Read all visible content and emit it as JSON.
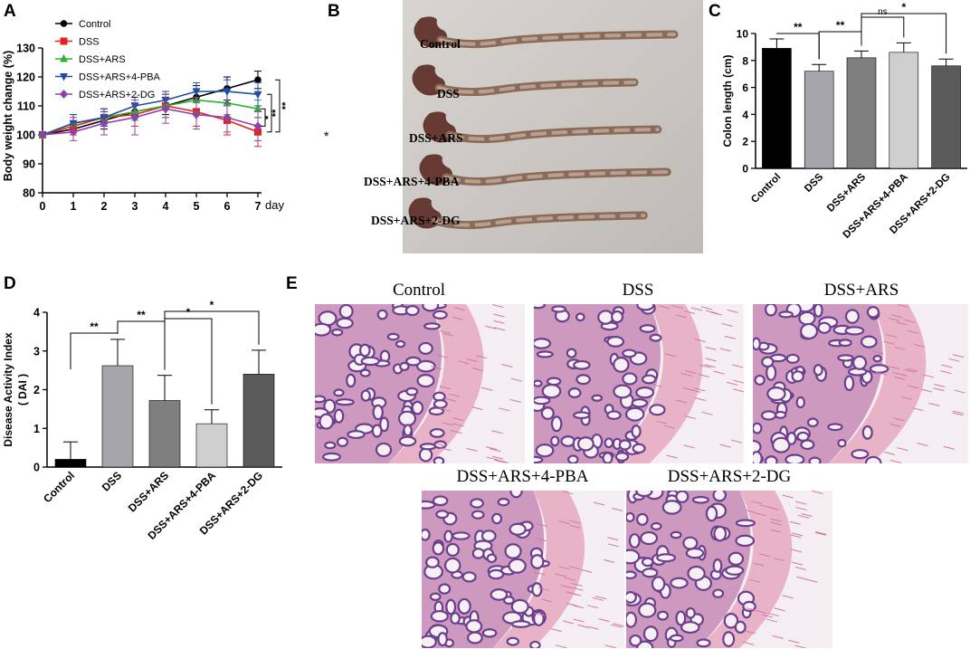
{
  "panels": {
    "A": "A",
    "B": "B",
    "C": "C",
    "D": "D",
    "E": "E"
  },
  "colors": {
    "control": "#000000",
    "dss": "#e8201b",
    "ars": "#2db034",
    "pba": "#1f4ea1",
    "dg": "#8e43a8",
    "bar_control": "#000000",
    "bar_dss": "#a4a4aa",
    "bar_ars": "#7f7f7f",
    "bar_pba": "#cfcfcf",
    "bar_dg": "#5a5a5a"
  },
  "stray_mark": "*",
  "chart_data": [
    {
      "id": "A",
      "type": "line",
      "ylabel": "Body weight change (%)",
      "xlabel": "day",
      "x": [
        0,
        1,
        2,
        3,
        4,
        5,
        6,
        7
      ],
      "xticks": [
        "0",
        "1",
        "2",
        "3",
        "4",
        "5",
        "6",
        "7"
      ],
      "ylim": [
        80,
        130
      ],
      "yticks": [
        "80",
        "90",
        "100",
        "110",
        "120",
        "130"
      ],
      "legend_position": "top-left",
      "series": [
        {
          "name": "Control",
          "color": "#000000",
          "marker": "circle",
          "values": [
            100,
            102,
            105,
            108,
            110,
            113,
            116,
            119
          ],
          "errors": [
            0,
            2,
            3,
            3,
            3,
            4,
            4,
            3
          ]
        },
        {
          "name": "DSS",
          "color": "#e8201b",
          "marker": "square",
          "values": [
            100,
            103,
            106,
            107,
            110,
            108,
            105,
            101
          ],
          "errors": [
            0,
            3,
            3,
            4,
            4,
            5,
            5,
            5
          ]
        },
        {
          "name": "DSS+ARS",
          "color": "#2db034",
          "marker": "triangle-up",
          "values": [
            100,
            104,
            106,
            108,
            110,
            112,
            111,
            109
          ],
          "errors": [
            0,
            3,
            3,
            3,
            4,
            4,
            4,
            3
          ]
        },
        {
          "name": "DSS+ARS+4-PBA",
          "color": "#1f4ea1",
          "marker": "triangle-down",
          "values": [
            100,
            104,
            106,
            110,
            112,
            115,
            115,
            114
          ],
          "errors": [
            0,
            3,
            3,
            3,
            3,
            3,
            4,
            4
          ]
        },
        {
          "name": "DSS+ARS+2-DG",
          "color": "#8e43a8",
          "marker": "diamond",
          "values": [
            100,
            101,
            104,
            106,
            109,
            107,
            106,
            103
          ],
          "errors": [
            0,
            3,
            4,
            6,
            5,
            5,
            5,
            5
          ]
        }
      ],
      "annotations": [
        "*",
        "*",
        "**",
        "**"
      ]
    },
    {
      "id": "C",
      "type": "bar",
      "ylabel": "Colon length (cm)",
      "categories": [
        "Control",
        "DSS",
        "DSS+ARS",
        "DSS+ARS+4-PBA",
        "DSS+ARS+2-DG"
      ],
      "values": [
        8.9,
        7.2,
        8.2,
        8.6,
        7.6
      ],
      "errors": [
        0.7,
        0.5,
        0.5,
        0.7,
        0.5
      ],
      "ylim": [
        0,
        10
      ],
      "yticks": [
        "0",
        "2",
        "4",
        "6",
        "8",
        "10"
      ],
      "colors": [
        "#000000",
        "#a4a4aa",
        "#7f7f7f",
        "#cfcfcf",
        "#5a5a5a"
      ],
      "significance": [
        {
          "from": 0,
          "to": 1,
          "label": "**"
        },
        {
          "from": 1,
          "to": 2,
          "label": "**"
        },
        {
          "from": 2,
          "to": 3,
          "label": "ns"
        },
        {
          "from": 2,
          "to": 4,
          "label": "*"
        }
      ]
    },
    {
      "id": "D",
      "type": "bar",
      "ylabel": "Disease Activity Index\n( DAI )",
      "categories": [
        "Control",
        "DSS",
        "DSS+ARS",
        "DSS+ARS+4-PBA",
        "DSS+ARS+2-DG"
      ],
      "values": [
        0.2,
        2.62,
        1.72,
        1.12,
        2.4
      ],
      "errors": [
        0.45,
        0.68,
        0.65,
        0.36,
        0.62
      ],
      "ylim": [
        0,
        4
      ],
      "yticks": [
        "0",
        "1",
        "2",
        "3",
        "4"
      ],
      "colors": [
        "#000000",
        "#a4a4aa",
        "#7f7f7f",
        "#cfcfcf",
        "#5a5a5a"
      ],
      "significance": [
        {
          "from": 0,
          "to": 1,
          "label": "**"
        },
        {
          "from": 1,
          "to": 2,
          "label": "**"
        },
        {
          "from": 2,
          "to": 3,
          "label": "*"
        },
        {
          "from": 2,
          "to": 4,
          "label": "*"
        }
      ]
    }
  ],
  "photo_B": {
    "labels": [
      "Control",
      "DSS",
      "DSS+ARS",
      "DSS+ARS+4-PBA",
      "DSS+ARS+2-DG"
    ],
    "colon_lengths": [
      8.9,
      7.2,
      8.2,
      8.6,
      7.6
    ]
  },
  "histology_E": {
    "labels": [
      "Control",
      "DSS",
      "DSS+ARS",
      "DSS+ARS+4-PBA",
      "DSS+ARS+2-DG"
    ]
  }
}
